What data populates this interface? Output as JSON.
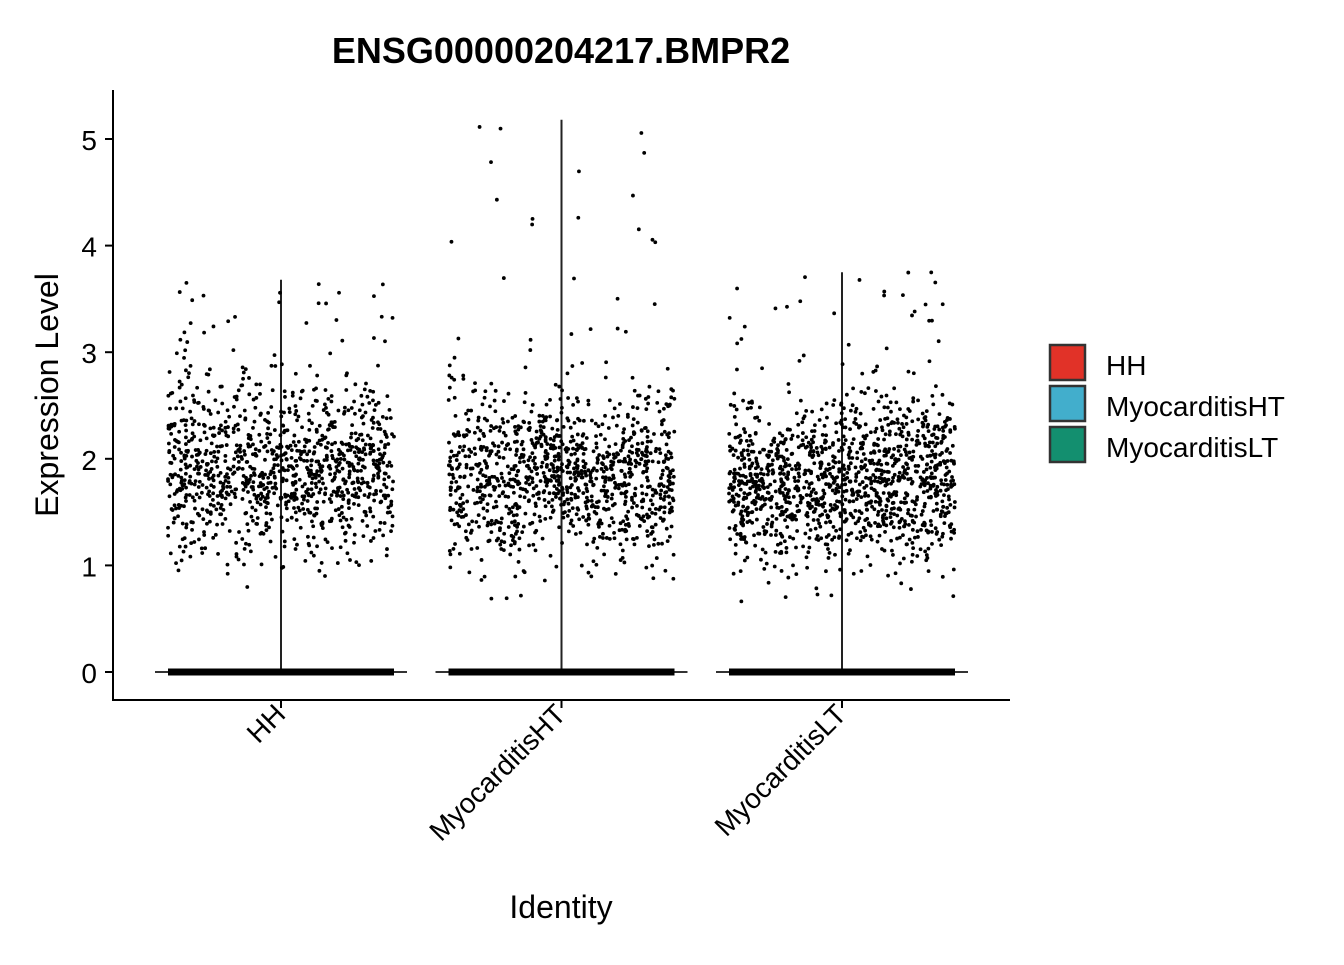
{
  "chart_data": {
    "type": "violin",
    "title": "ENSG00000204217.BMPR2",
    "xlabel": "Identity",
    "ylabel": "Expression Level",
    "ylim": [
      -0.25,
      5.45
    ],
    "yticks": [
      0,
      1,
      2,
      3,
      4,
      5
    ],
    "categories": [
      "HH",
      "MyocarditisHT",
      "MyocarditisLT"
    ],
    "colors": [
      "#E13228",
      "#42AECC",
      "#138F6F"
    ],
    "legend": {
      "position": "right",
      "entries": [
        "HH",
        "MyocarditisHT",
        "MyocarditisLT"
      ]
    },
    "series": [
      {
        "name": "HH",
        "max": 3.68,
        "median_nonzero": 1.9,
        "n_nonzero_approx": 1100,
        "mode": 0
      },
      {
        "name": "MyocarditisHT",
        "max": 5.18,
        "median_nonzero": 1.85,
        "n_nonzero_approx": 1100,
        "mode": 0
      },
      {
        "name": "MyocarditisLT",
        "max": 3.75,
        "median_nonzero": 1.8,
        "n_nonzero_approx": 1300,
        "mode": 0
      }
    ]
  }
}
